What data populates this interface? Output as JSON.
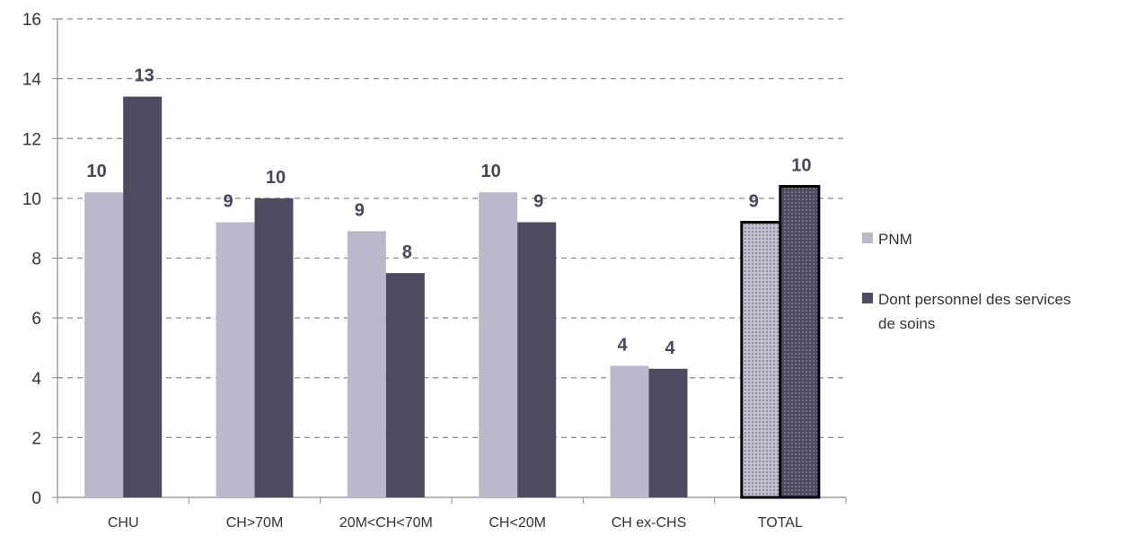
{
  "chart_data": {
    "type": "bar",
    "title": "",
    "xlabel": "",
    "ylabel": "",
    "ylim": [
      0,
      16
    ],
    "y_ticks": [
      "0",
      "2",
      "4",
      "6",
      "8",
      "10",
      "12",
      "14",
      "16"
    ],
    "grid": "horizontal-dashed",
    "legend_position": "right",
    "categories": [
      "CHU",
      "CH>70M",
      "20M<CH<70M",
      "CH<20M",
      "CH ex-CHS",
      "TOTAL"
    ],
    "highlighted_category": "TOTAL",
    "series": [
      {
        "name": "PNM",
        "color": "#bcb8cb",
        "values": [
          10.2,
          9.2,
          8.9,
          10.2,
          4.4,
          9.2
        ],
        "labels": [
          "10",
          "9",
          "9",
          "10",
          "4",
          "9"
        ]
      },
      {
        "name": "Dont personnel des services de soins",
        "color": "#4f4a60",
        "values": [
          13.4,
          10.0,
          7.5,
          9.2,
          4.3,
          10.4
        ],
        "labels": [
          "13",
          "10",
          "8",
          "9",
          "4",
          "10"
        ]
      }
    ]
  },
  "legend": {
    "items": [
      {
        "label_lines": [
          "PNM"
        ]
      },
      {
        "label_lines": [
          "Dont personnel des services",
          "de soins"
        ]
      }
    ]
  }
}
